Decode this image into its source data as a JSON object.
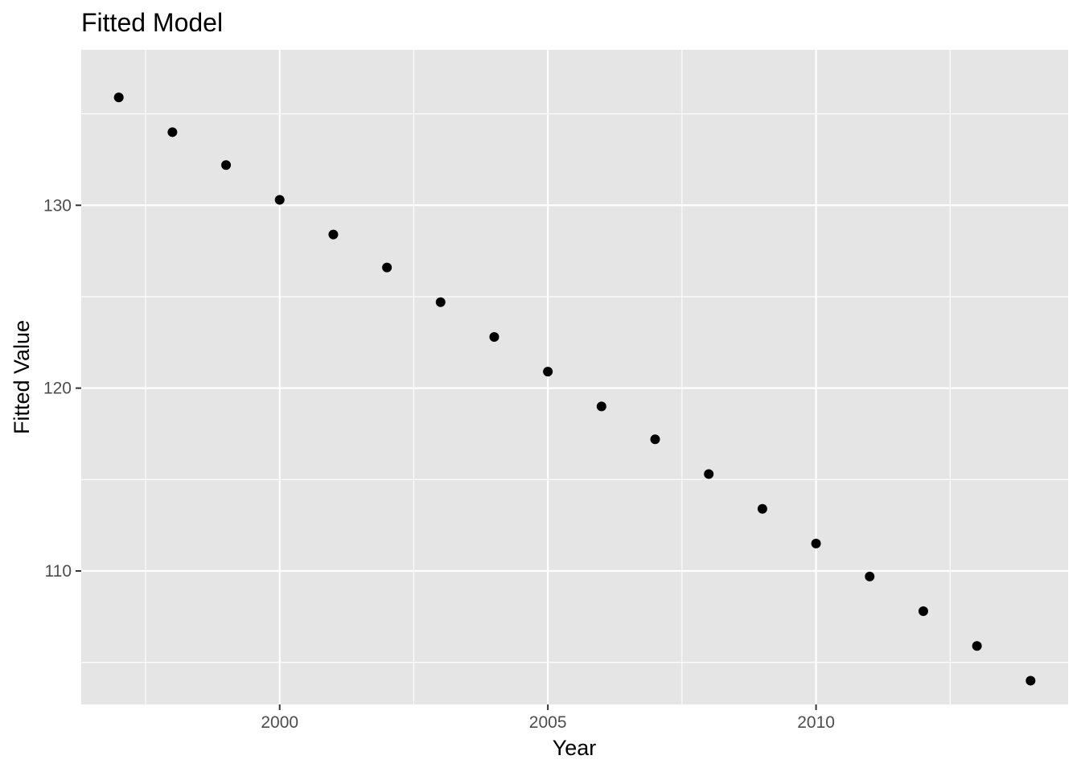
{
  "chart_data": {
    "type": "scatter",
    "title": "Fitted Model",
    "xlabel": "Year",
    "ylabel": "Fitted Value",
    "xlim": [
      1996.3,
      2014.7
    ],
    "ylim": [
      102.7,
      138.5
    ],
    "x_ticks": [
      2000,
      2005,
      2010
    ],
    "x_tick_labels": [
      "2000",
      "2005",
      "2010"
    ],
    "x_minor_ticks": [
      1997.5,
      2002.5,
      2007.5,
      2012.5
    ],
    "y_ticks": [
      110,
      120,
      130
    ],
    "y_tick_labels": [
      "110",
      "120",
      "130"
    ],
    "y_minor_ticks": [
      105,
      115,
      125,
      135
    ],
    "grid": true,
    "legend": "none",
    "colors": {
      "panel_background": "#e5e5e5",
      "grid": "#ffffff",
      "point": "#000000",
      "tick_text": "#4d4d4d",
      "tick_mark": "#333333"
    },
    "series": [
      {
        "x": [
          1997,
          1998,
          1999,
          2000,
          2001,
          2002,
          2003,
          2004,
          2005,
          2006,
          2007,
          2008,
          2009,
          2010,
          2011,
          2012,
          2013,
          2014
        ],
        "y": [
          135.9,
          134.0,
          132.2,
          130.3,
          128.4,
          126.6,
          124.7,
          122.8,
          120.9,
          119.0,
          117.2,
          115.3,
          113.4,
          111.5,
          109.7,
          107.8,
          105.9,
          104.0
        ]
      }
    ]
  }
}
